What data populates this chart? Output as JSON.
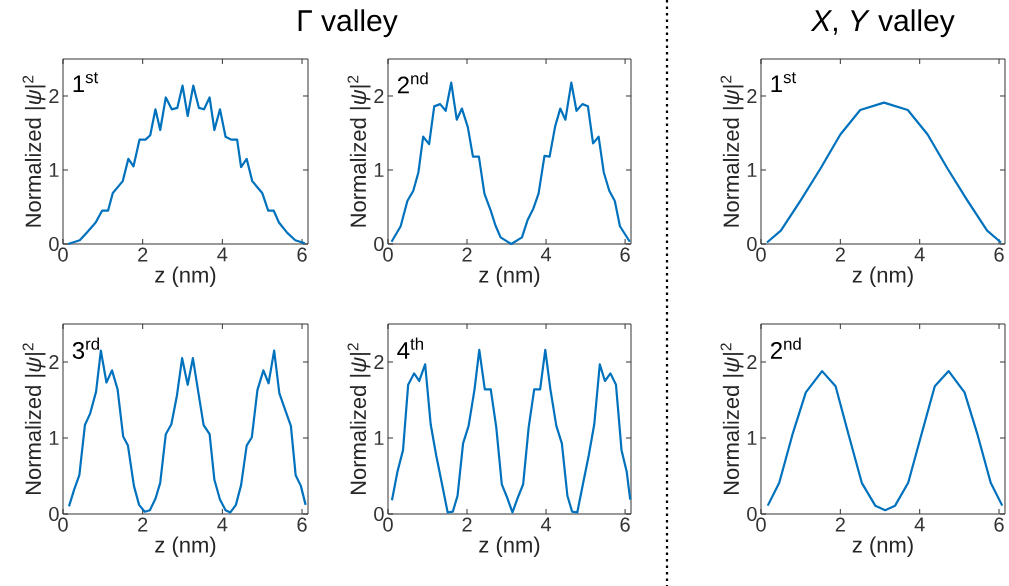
{
  "chart_data": [
    {
      "type": "line",
      "title": "Γ valley",
      "xlabel": "z (nm)",
      "ylabel": "Normalized |*ψ*|$^{2}$",
      "annotations": [
        "1$^{st}$"
      ],
      "xlim": [
        0,
        6.15
      ],
      "ylim": [
        0,
        2.5
      ],
      "xticks": [
        0,
        2,
        4,
        6
      ],
      "yticks": [
        0,
        1,
        2
      ],
      "x": [
        0.13,
        0.42,
        0.59,
        0.82,
        0.98,
        1.13,
        1.25,
        1.5,
        1.64,
        1.77,
        1.92,
        2.07,
        2.19,
        2.32,
        2.44,
        2.58,
        2.73,
        2.87,
        3.0,
        3.13,
        3.27,
        3.41,
        3.54,
        3.68,
        3.8,
        3.94,
        4.08,
        4.22,
        4.37,
        4.47,
        4.61,
        4.75,
        5.0,
        5.15,
        5.29,
        5.42,
        5.63,
        5.83,
        6.07
      ],
      "series": [
        {
          "color": "#0072bd",
          "values": [
            0,
            0.05,
            0.15,
            0.29,
            0.45,
            0.45,
            0.69,
            0.85,
            1.15,
            1.05,
            1.41,
            1.41,
            1.47,
            1.82,
            1.54,
            1.98,
            1.82,
            1.84,
            2.14,
            1.73,
            2.14,
            1.84,
            1.82,
            1.98,
            1.54,
            1.82,
            1.45,
            1.41,
            1.41,
            1.04,
            1.15,
            0.85,
            0.69,
            0.45,
            0.45,
            0.29,
            0.15,
            0.05,
            0.01
          ]
        }
      ]
    },
    {
      "type": "line",
      "xlabel": "z (nm)",
      "ylabel": "Normalized |*ψ*|$^{2}$",
      "annotations": [
        "2$^{nd}$"
      ],
      "xlim": [
        0,
        6.15
      ],
      "ylim": [
        0,
        2.5
      ],
      "xticks": [
        0,
        2,
        4,
        6
      ],
      "yticks": [
        0,
        1,
        2
      ],
      "x": [
        0.09,
        0.32,
        0.49,
        0.64,
        0.77,
        0.89,
        1.04,
        1.17,
        1.32,
        1.46,
        1.6,
        1.74,
        1.87,
        2.02,
        2.15,
        2.3,
        2.44,
        2.6,
        2.72,
        2.85,
        3.12,
        3.39,
        3.53,
        3.68,
        3.81,
        3.96,
        4.09,
        4.23,
        4.36,
        4.49,
        4.64,
        4.77,
        4.92,
        5.06,
        5.19,
        5.33,
        5.46,
        5.6,
        5.74,
        5.87,
        6.12
      ],
      "series": [
        {
          "color": "#0072bd",
          "values": [
            0.03,
            0.24,
            0.58,
            0.72,
            0.97,
            1.45,
            1.35,
            1.86,
            1.89,
            1.8,
            2.18,
            1.68,
            1.83,
            1.58,
            1.18,
            1.18,
            0.68,
            0.45,
            0.25,
            0.09,
            0,
            0.09,
            0.32,
            0.48,
            0.68,
            1.19,
            1.18,
            1.59,
            1.83,
            1.68,
            2.18,
            1.8,
            1.89,
            1.86,
            1.36,
            1.45,
            0.97,
            0.72,
            0.58,
            0.24,
            0.03
          ]
        }
      ]
    },
    {
      "type": "line",
      "title": "*X*, *Y* valley",
      "xlabel": "z (nm)",
      "ylabel": "Normalized |*ψ*|$^{2}$",
      "annotations": [
        "1$^{st}$"
      ],
      "xlim": [
        0,
        6.15
      ],
      "ylim": [
        0,
        2.5
      ],
      "xticks": [
        0,
        2,
        4,
        6
      ],
      "yticks": [
        0,
        1,
        2
      ],
      "x": [
        0.15,
        0.5,
        1.0,
        1.5,
        2.0,
        2.5,
        3.1,
        3.7,
        4.2,
        4.7,
        5.2,
        5.7,
        6.05
      ],
      "series": [
        {
          "color": "#0072bd",
          "values": [
            0.02,
            0.18,
            0.59,
            1.02,
            1.48,
            1.81,
            1.91,
            1.81,
            1.48,
            1.02,
            0.59,
            0.18,
            0.02
          ]
        }
      ]
    },
    {
      "type": "line",
      "xlabel": "z (nm)",
      "ylabel": "Normalized |*ψ*|$^{2}$",
      "annotations": [
        "3$^{rd}$"
      ],
      "xlim": [
        0,
        6.15
      ],
      "ylim": [
        0,
        2.5
      ],
      "xticks": [
        0,
        2,
        4,
        6
      ],
      "yticks": [
        0,
        1,
        2
      ],
      "x": [
        0.15,
        0.28,
        0.41,
        0.55,
        0.68,
        0.83,
        0.95,
        1.09,
        1.23,
        1.37,
        1.51,
        1.63,
        1.78,
        1.91,
        2.05,
        2.18,
        2.32,
        2.44,
        2.58,
        2.72,
        2.86,
        2.99,
        3.13,
        3.26,
        3.4,
        3.53,
        3.68,
        3.8,
        3.94,
        4.08,
        4.2,
        4.34,
        4.47,
        4.61,
        4.74,
        4.88,
        5.03,
        5.16,
        5.3,
        5.43,
        5.57,
        5.72,
        5.84,
        5.97,
        6.09
      ],
      "series": [
        {
          "color": "#0072bd",
          "values": [
            0.1,
            0.32,
            0.51,
            1.17,
            1.32,
            1.61,
            2.15,
            1.73,
            1.89,
            1.64,
            1.02,
            0.9,
            0.37,
            0.12,
            0.03,
            0.05,
            0.2,
            0.41,
            1.05,
            1.18,
            1.56,
            2.05,
            1.7,
            2.05,
            1.59,
            1.17,
            1.05,
            0.45,
            0.19,
            0.05,
            0.02,
            0.12,
            0.38,
            0.9,
            1.01,
            1.63,
            1.89,
            1.72,
            2.15,
            1.59,
            1.38,
            1.16,
            0.51,
            0.37,
            0.12
          ]
        }
      ]
    },
    {
      "type": "line",
      "xlabel": "z (nm)",
      "ylabel": "Normalized |*ψ*|$^{2}$",
      "annotations": [
        "4$^{th}$"
      ],
      "xlim": [
        0,
        6.15
      ],
      "ylim": [
        0,
        2.5
      ],
      "xticks": [
        0,
        2,
        4,
        6
      ],
      "yticks": [
        0,
        1,
        2
      ],
      "x": [
        0.1,
        0.24,
        0.38,
        0.51,
        0.66,
        0.79,
        0.94,
        1.08,
        1.22,
        1.36,
        1.51,
        1.64,
        1.76,
        1.9,
        2.04,
        2.19,
        2.31,
        2.45,
        2.6,
        2.74,
        2.88,
        3.02,
        3.15,
        3.28,
        3.42,
        3.56,
        3.7,
        3.85,
        3.98,
        4.11,
        4.26,
        4.4,
        4.54,
        4.66,
        4.79,
        4.94,
        5.08,
        5.22,
        5.36,
        5.49,
        5.63,
        5.77,
        5.91,
        6.04,
        6.13
      ],
      "series": [
        {
          "color": "#0072bd",
          "values": [
            0.18,
            0.56,
            0.84,
            1.7,
            1.85,
            1.75,
            1.97,
            1.18,
            0.77,
            0.41,
            0.02,
            0.03,
            0.24,
            0.93,
            1.16,
            1.64,
            2.16,
            1.64,
            1.64,
            1.14,
            0.39,
            0.21,
            0.02,
            0.21,
            0.39,
            1.14,
            1.64,
            1.64,
            2.16,
            1.64,
            1.16,
            0.93,
            0.24,
            0.03,
            0.02,
            0.41,
            0.77,
            1.18,
            1.97,
            1.75,
            1.85,
            1.7,
            0.84,
            0.56,
            0.19
          ]
        }
      ]
    },
    {
      "type": "line",
      "xlabel": "z (nm)",
      "ylabel": "Normalized |*ψ*|$^{2}$",
      "annotations": [
        "2$^{nd}$"
      ],
      "xlim": [
        0,
        6.15
      ],
      "ylim": [
        0,
        2.5
      ],
      "xticks": [
        0,
        2,
        4,
        6
      ],
      "yticks": [
        0,
        1,
        2
      ],
      "x": [
        0.17,
        0.46,
        0.79,
        1.13,
        1.54,
        1.88,
        2.21,
        2.54,
        2.88,
        3.13,
        3.38,
        3.71,
        4.04,
        4.38,
        4.73,
        5.13,
        5.46,
        5.79,
        6.08
      ],
      "series": [
        {
          "color": "#0072bd",
          "values": [
            0.11,
            0.41,
            1.04,
            1.6,
            1.88,
            1.68,
            1.04,
            0.41,
            0.11,
            0.05,
            0.11,
            0.41,
            1.04,
            1.68,
            1.88,
            1.6,
            1.04,
            0.41,
            0.11
          ]
        }
      ]
    }
  ]
}
